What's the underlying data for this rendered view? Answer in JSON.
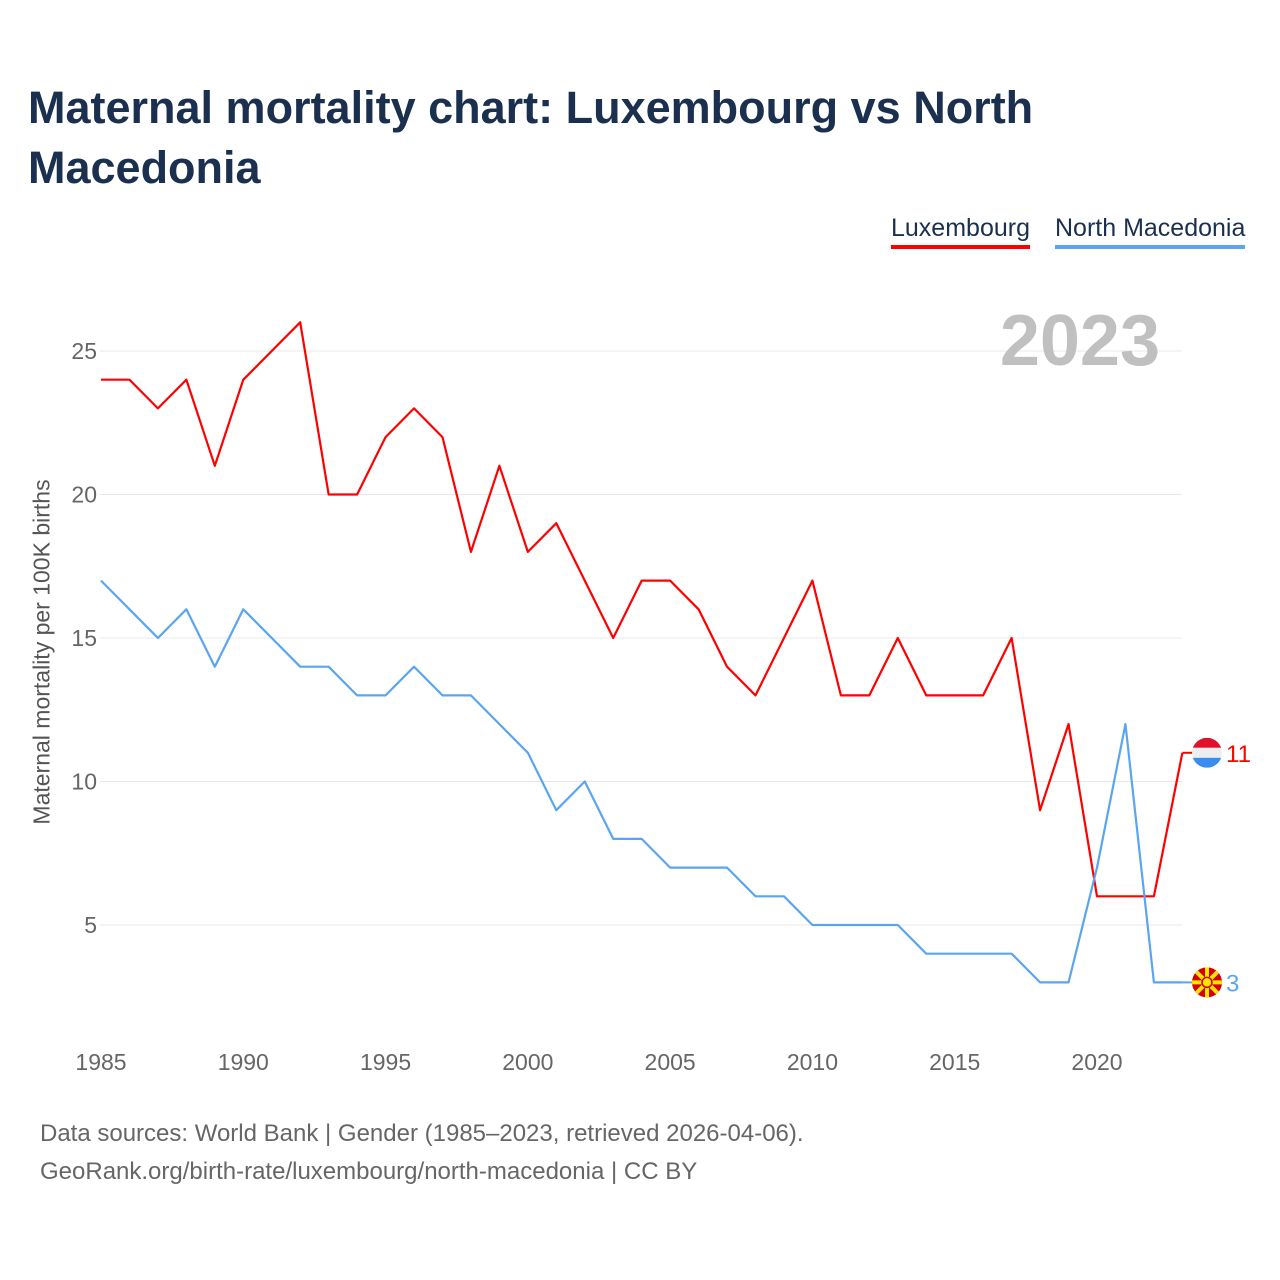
{
  "title": "Maternal mortality chart: Luxembourg vs North Macedonia",
  "year_label": "2023",
  "source_line1": "Data sources: World Bank | Gender (1985–2023, retrieved 2026-04-06).",
  "source_line2": "GeoRank.org/birth-rate/luxembourg/north-macedonia | CC BY",
  "chart_data": {
    "type": "line",
    "title": "Maternal mortality chart: Luxembourg vs North Macedonia",
    "xlabel": "",
    "ylabel": "Maternal mortality per 100K births",
    "x": [
      1985,
      1986,
      1987,
      1988,
      1989,
      1990,
      1991,
      1992,
      1993,
      1994,
      1995,
      1996,
      1997,
      1998,
      1999,
      2000,
      2001,
      2002,
      2003,
      2004,
      2005,
      2006,
      2007,
      2008,
      2009,
      2010,
      2011,
      2012,
      2013,
      2014,
      2015,
      2016,
      2017,
      2018,
      2019,
      2020,
      2021,
      2022,
      2023
    ],
    "xticks": [
      "1985",
      "1990",
      "1995",
      "2000",
      "2005",
      "2010",
      "2015",
      "2020"
    ],
    "yticks": [
      "5",
      "10",
      "15",
      "20",
      "25"
    ],
    "xlim": [
      1985,
      2023
    ],
    "ylim": [
      1.5,
      27
    ],
    "grid": true,
    "legend": "top-right",
    "series": [
      {
        "name": "Luxembourg",
        "color": "#ff0000",
        "end_label": "11",
        "values": [
          24,
          24,
          23,
          24,
          21,
          24,
          25,
          26,
          20,
          20,
          22,
          23,
          22,
          18,
          21,
          18,
          19,
          17,
          15,
          17,
          17,
          16,
          14,
          13,
          15,
          17,
          13,
          13,
          15,
          13,
          13,
          13,
          15,
          9,
          12,
          6,
          6,
          6,
          11
        ]
      },
      {
        "name": "North Macedonia",
        "color": "#5aa5f0",
        "end_label": "3",
        "values": [
          17,
          16,
          15,
          16,
          14,
          16,
          15,
          14,
          14,
          13,
          13,
          14,
          13,
          13,
          12,
          11,
          9,
          10,
          8,
          8,
          7,
          7,
          7,
          6,
          6,
          5,
          5,
          5,
          5,
          4,
          4,
          4,
          4,
          3,
          3,
          7,
          12,
          3,
          3
        ]
      }
    ]
  }
}
